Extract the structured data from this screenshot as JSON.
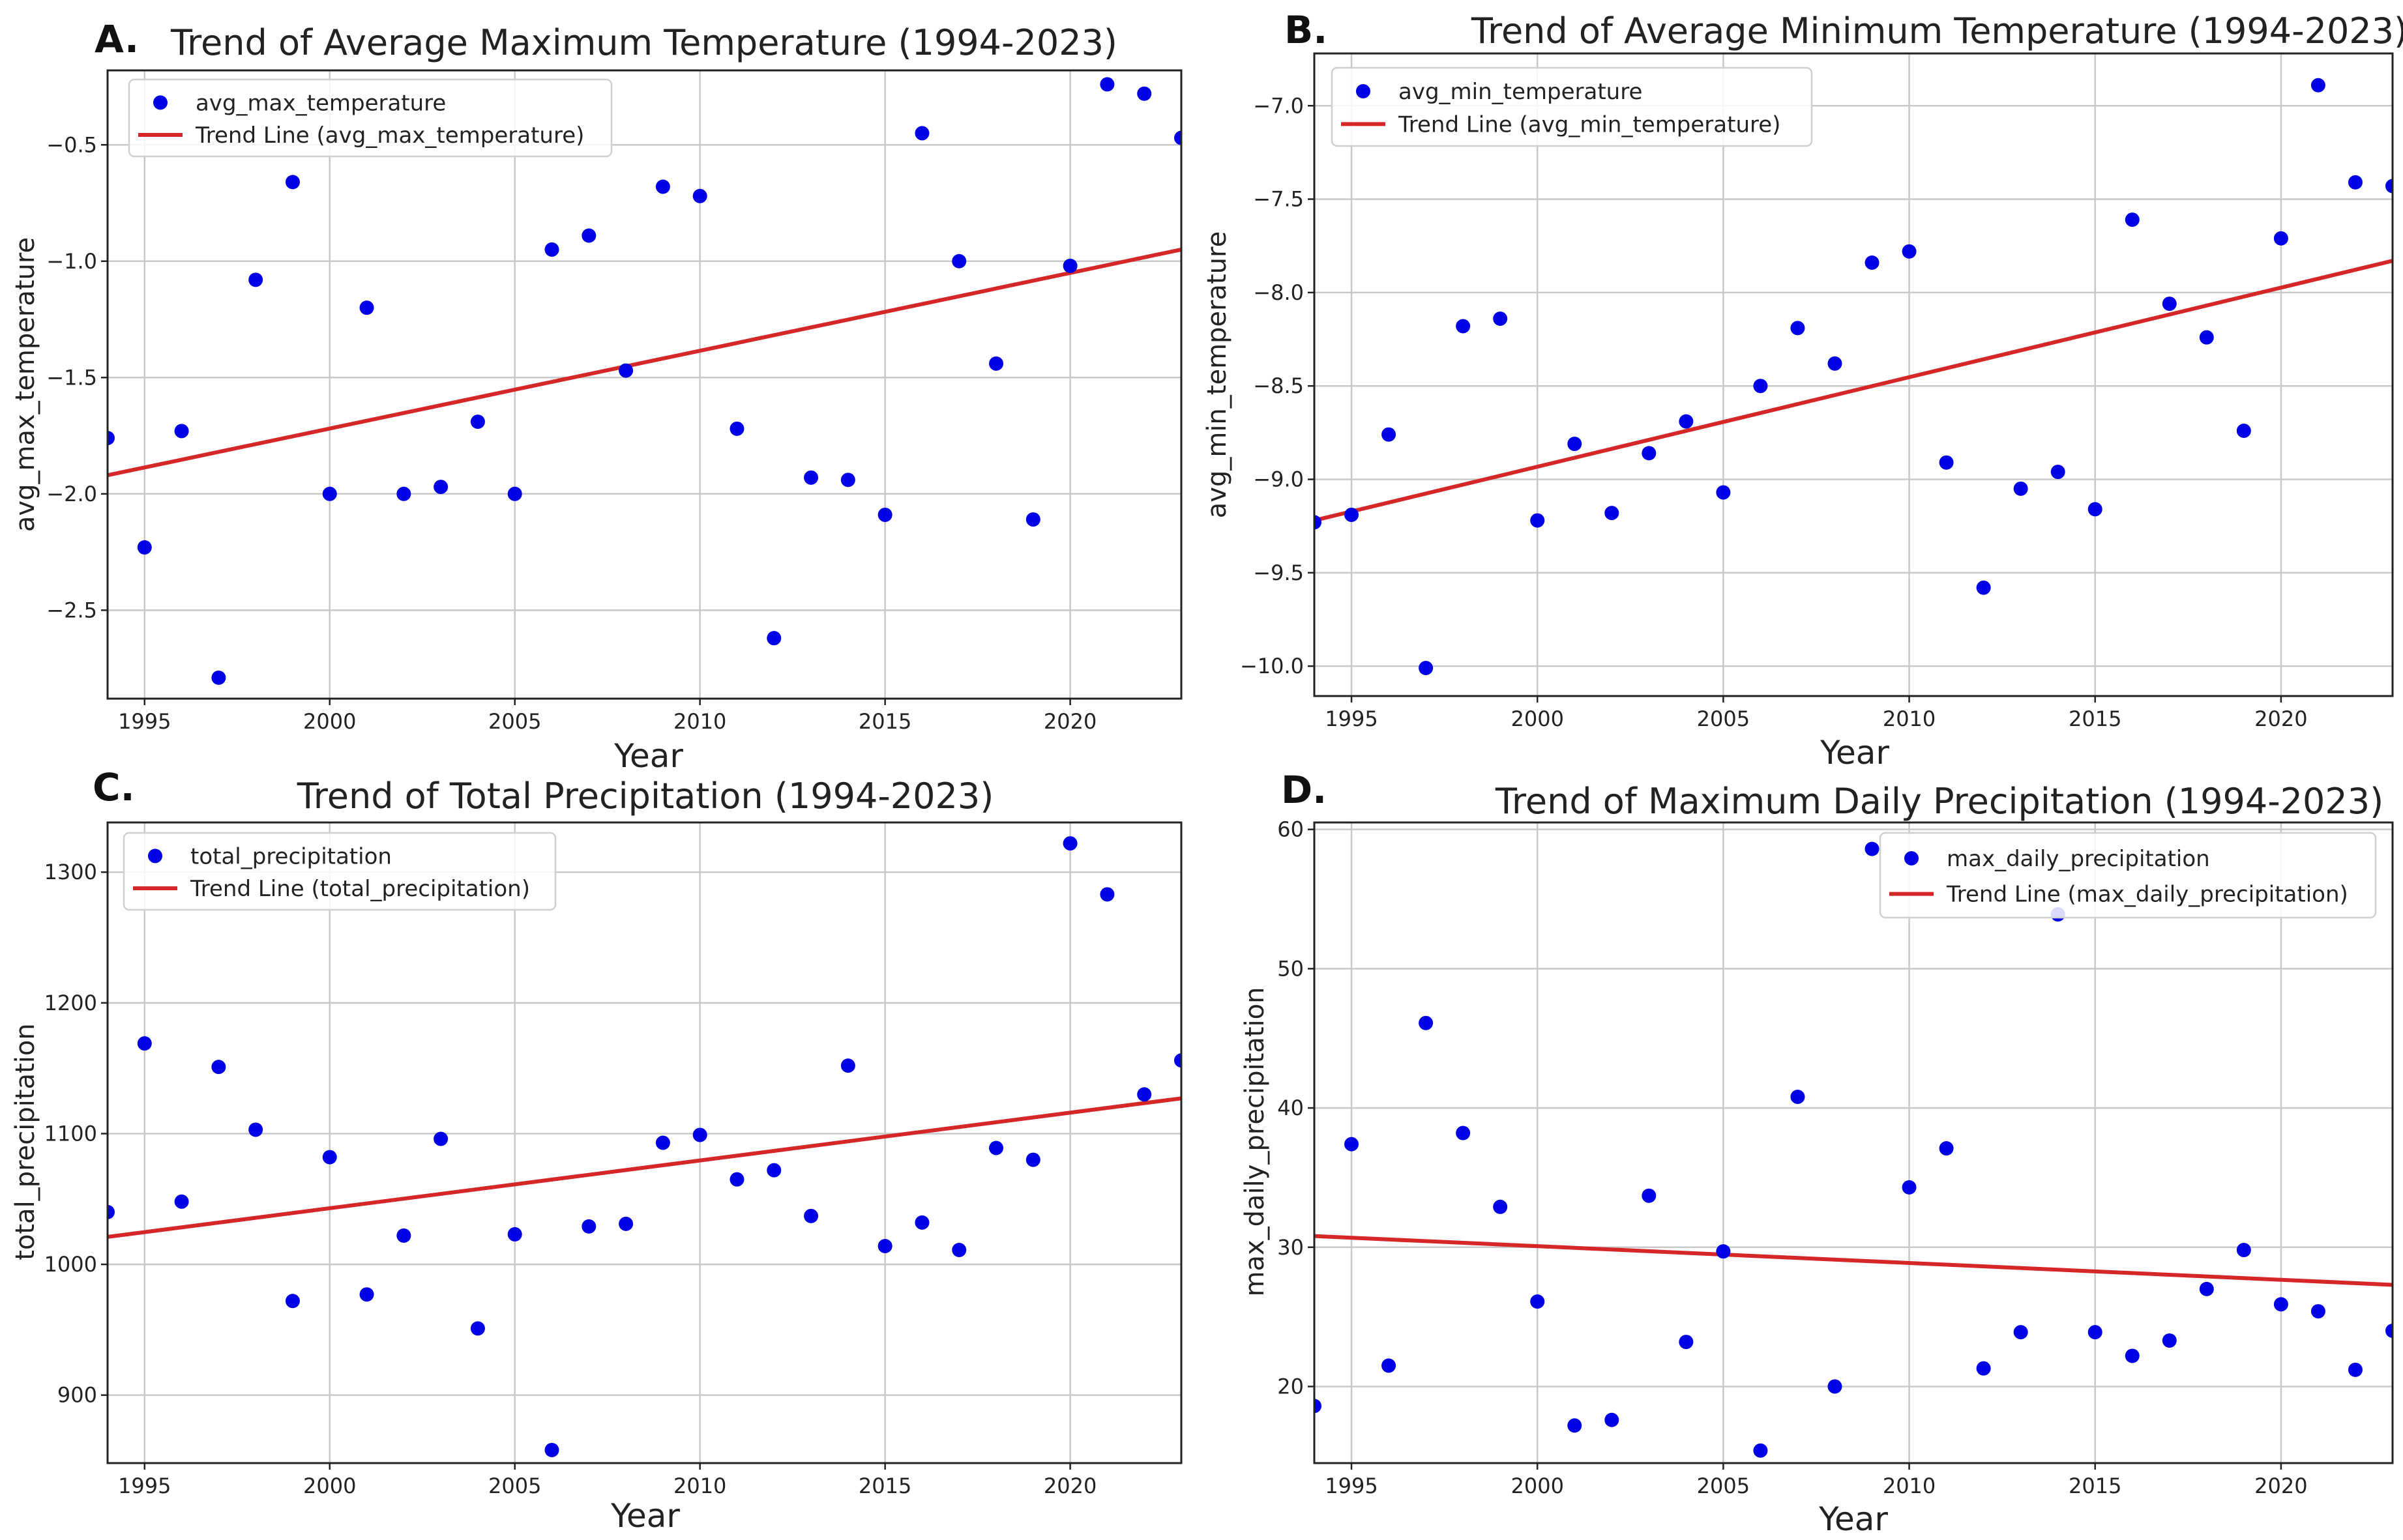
{
  "figure": {
    "colors": {
      "points": "#0000e6",
      "trend": "#d62728",
      "grid": "#c8c8c8",
      "frame": "#222222"
    }
  },
  "chart_data": [
    {
      "id": "A",
      "panel_label": "A.",
      "type": "scatter",
      "title": "Trend of Average Maximum Temperature (1994-2023)",
      "xlabel": "Year",
      "ylabel": "avg_max_temperature",
      "xlim": [
        1994,
        2023
      ],
      "ylim": [
        -2.88,
        -0.18
      ],
      "xticks": [
        1995,
        2000,
        2005,
        2010,
        2015,
        2020
      ],
      "yticks": [
        -2.5,
        -2.0,
        -1.5,
        -1.0,
        -0.5
      ],
      "ytick_labels": [
        "−2.5",
        "−2.0",
        "−1.5",
        "−1.0",
        "−0.5"
      ],
      "legend": {
        "position": "top-left",
        "points_label": "avg_max_temperature",
        "trend_label": "Trend Line (avg_max_temperature)"
      },
      "series": [
        {
          "name": "avg_max_temperature",
          "x": [
            1994,
            1995,
            1996,
            1997,
            1998,
            1999,
            2000,
            2001,
            2002,
            2003,
            2004,
            2005,
            2006,
            2007,
            2008,
            2009,
            2010,
            2011,
            2012,
            2013,
            2014,
            2015,
            2016,
            2017,
            2018,
            2019,
            2020,
            2021,
            2022,
            2023
          ],
          "y": [
            -1.76,
            -2.23,
            -1.73,
            -2.79,
            -1.08,
            -0.66,
            -2.0,
            -1.2,
            -2.0,
            -1.97,
            -1.69,
            -2.0,
            -0.95,
            -0.89,
            -1.47,
            -0.68,
            -0.72,
            -1.72,
            -2.62,
            -1.93,
            -1.94,
            -2.09,
            -0.45,
            -1.0,
            -1.44,
            -2.11,
            -1.02,
            -0.24,
            -0.28,
            -0.47
          ]
        }
      ],
      "trend": {
        "x": [
          1994,
          2023
        ],
        "y": [
          -1.92,
          -0.95
        ]
      }
    },
    {
      "id": "B",
      "panel_label": "B.",
      "type": "scatter",
      "title": "Trend of Average Minimum Temperature (1994-2023)",
      "xlabel": "Year",
      "ylabel": "avg_min_temperature",
      "xlim": [
        1994,
        2023
      ],
      "ylim": [
        -10.16,
        -6.72
      ],
      "xticks": [
        1995,
        2000,
        2005,
        2010,
        2015,
        2020
      ],
      "yticks": [
        -10.0,
        -9.5,
        -9.0,
        -8.5,
        -8.0,
        -7.5,
        -7.0
      ],
      "ytick_labels": [
        "−10.0",
        "−9.5",
        "−9.0",
        "−8.5",
        "−8.0",
        "−7.5",
        "−7.0"
      ],
      "legend": {
        "position": "top-left",
        "points_label": "avg_min_temperature",
        "trend_label": "Trend Line (avg_min_temperature)"
      },
      "series": [
        {
          "name": "avg_min_temperature",
          "x": [
            1994,
            1995,
            1996,
            1997,
            1998,
            1999,
            2000,
            2001,
            2002,
            2003,
            2004,
            2005,
            2006,
            2007,
            2008,
            2009,
            2010,
            2011,
            2012,
            2013,
            2014,
            2015,
            2016,
            2017,
            2018,
            2019,
            2020,
            2021,
            2022,
            2023
          ],
          "y": [
            -9.23,
            -9.19,
            -8.76,
            -10.01,
            -8.18,
            -8.14,
            -9.22,
            -8.81,
            -9.18,
            -8.86,
            -8.69,
            -9.07,
            -8.5,
            -8.19,
            -8.38,
            -7.84,
            -7.78,
            -8.91,
            -9.58,
            -9.05,
            -8.96,
            -9.16,
            -7.61,
            -8.06,
            -8.24,
            -8.74,
            -7.71,
            -6.89,
            -7.41,
            -7.43
          ]
        }
      ],
      "trend": {
        "x": [
          1994,
          2023
        ],
        "y": [
          -9.22,
          -7.83
        ]
      }
    },
    {
      "id": "C",
      "panel_label": "C.",
      "type": "scatter",
      "title": "Trend of Total Precipitation (1994-2023)",
      "xlabel": "Year",
      "ylabel": "total_precipitation",
      "xlim": [
        1994,
        2023
      ],
      "ylim": [
        848,
        1338
      ],
      "xticks": [
        1995,
        2000,
        2005,
        2010,
        2015,
        2020
      ],
      "yticks": [
        900,
        1000,
        1100,
        1200,
        1300
      ],
      "ytick_labels": [
        "900",
        "1000",
        "1100",
        "1200",
        "1300"
      ],
      "legend": {
        "position": "top-left",
        "points_label": "total_precipitation",
        "trend_label": "Trend Line (total_precipitation)"
      },
      "series": [
        {
          "name": "total_precipitation",
          "x": [
            1994,
            1995,
            1996,
            1997,
            1998,
            1999,
            2000,
            2001,
            2002,
            2003,
            2004,
            2005,
            2006,
            2007,
            2008,
            2009,
            2010,
            2011,
            2012,
            2013,
            2014,
            2015,
            2016,
            2017,
            2018,
            2019,
            2020,
            2021,
            2022,
            2023
          ],
          "y": [
            1040,
            1169,
            1048,
            1151,
            1103,
            972,
            1082,
            977,
            1022,
            1096,
            951,
            1023,
            858,
            1029,
            1031,
            1093,
            1099,
            1065,
            1072,
            1037,
            1152,
            1014,
            1032,
            1011,
            1089,
            1080,
            1322,
            1283,
            1130,
            1156
          ]
        }
      ],
      "trend": {
        "x": [
          1994,
          2023
        ],
        "y": [
          1021,
          1127
        ]
      }
    },
    {
      "id": "D",
      "panel_label": "D.",
      "type": "scatter",
      "title": "Trend of Maximum Daily Precipitation (1994-2023)",
      "xlabel": "Year",
      "ylabel": "max_daily_precipitation",
      "xlim": [
        1994,
        2023
      ],
      "ylim": [
        14.5,
        60.5
      ],
      "xticks": [
        1995,
        2000,
        2005,
        2010,
        2015,
        2020
      ],
      "yticks": [
        20,
        30,
        40,
        50,
        60
      ],
      "ytick_labels": [
        "20",
        "30",
        "40",
        "50",
        "60"
      ],
      "legend": {
        "position": "top-right",
        "points_label": "max_daily_precipitation",
        "trend_label": "Trend Line (max_daily_precipitation)"
      },
      "series": [
        {
          "name": "max_daily_precipitation",
          "x": [
            1994,
            1995,
            1996,
            1997,
            1998,
            1999,
            2000,
            2001,
            2002,
            2003,
            2004,
            2005,
            2006,
            2007,
            2008,
            2009,
            2010,
            2011,
            2012,
            2013,
            2014,
            2015,
            2016,
            2017,
            2018,
            2019,
            2020,
            2021,
            2022,
            2023
          ],
          "y": [
            18.6,
            37.4,
            21.5,
            46.1,
            38.2,
            32.9,
            26.1,
            17.2,
            17.6,
            33.7,
            23.2,
            29.7,
            15.4,
            40.8,
            20.0,
            58.6,
            34.3,
            37.1,
            21.3,
            23.9,
            53.9,
            23.9,
            22.2,
            23.3,
            27.0,
            29.8,
            25.9,
            25.4,
            21.2,
            24.0
          ]
        }
      ],
      "trend": {
        "x": [
          1994,
          2023
        ],
        "y": [
          30.8,
          27.3
        ]
      }
    }
  ]
}
